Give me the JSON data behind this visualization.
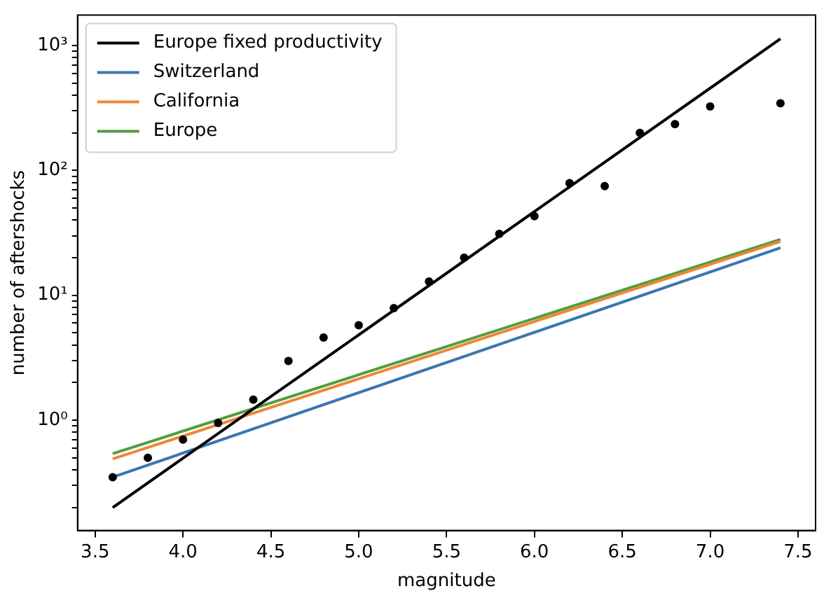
{
  "chart_data": {
    "type": "line",
    "xlabel": "magnitude",
    "ylabel": "number of aftershocks",
    "log": "y",
    "legend": "top left",
    "grid": false,
    "xlim": [
      3.4,
      7.6
    ],
    "ylim": [
      0.131,
      1750
    ],
    "xticks": [
      3.5,
      {
        "value": 4,
        "label": "4.0"
      },
      4.5,
      {
        "value": 5,
        "label": "5.0"
      },
      5.5,
      {
        "value": 6,
        "label": "6.0"
      },
      6.5,
      {
        "value": 7,
        "label": "7.0"
      },
      7.5
    ],
    "yticks": [
      {
        "value": 0.2,
        "label": null
      },
      {
        "value": 0.3,
        "label": null
      },
      {
        "value": 0.4,
        "label": null
      },
      {
        "value": 0.5,
        "label": null
      },
      {
        "value": 0.6,
        "label": null
      },
      {
        "value": 0.7,
        "label": null
      },
      {
        "value": 0.8,
        "label": null
      },
      {
        "value": 0.9,
        "label": null
      },
      {
        "value": 1,
        "label": "10⁰"
      },
      {
        "value": 2,
        "label": null
      },
      {
        "value": 3,
        "label": null
      },
      {
        "value": 4,
        "label": null
      },
      {
        "value": 5,
        "label": null
      },
      {
        "value": 6,
        "label": null
      },
      {
        "value": 7,
        "label": null
      },
      {
        "value": 8,
        "label": null
      },
      {
        "value": 9,
        "label": null
      },
      {
        "value": 10,
        "label": "10¹"
      },
      {
        "value": 20,
        "label": null
      },
      {
        "value": 30,
        "label": null
      },
      {
        "value": 40,
        "label": null
      },
      {
        "value": 50,
        "label": null
      },
      {
        "value": 60,
        "label": null
      },
      {
        "value": 70,
        "label": null
      },
      {
        "value": 80,
        "label": null
      },
      {
        "value": 90,
        "label": null
      },
      {
        "value": 100,
        "label": "10²"
      },
      {
        "value": 200,
        "label": null
      },
      {
        "value": 300,
        "label": null
      },
      {
        "value": 400,
        "label": null
      },
      {
        "value": 500,
        "label": null
      },
      {
        "value": 600,
        "label": null
      },
      {
        "value": 700,
        "label": null
      },
      {
        "value": 800,
        "label": null
      },
      {
        "value": 900,
        "label": null
      },
      {
        "value": 1000,
        "label": "10³"
      }
    ],
    "series": [
      {
        "name": "Europe fixed productivity",
        "color": "#000000",
        "marker": "none",
        "x": [
          3.6,
          7.4
        ],
        "values": [
          0.2,
          1130
        ]
      },
      {
        "name": "Switzerland",
        "color": "#3a76af",
        "marker": "none",
        "x": [
          3.6,
          7.4
        ],
        "values": [
          0.35,
          24
        ]
      },
      {
        "name": "California",
        "color": "#ef8636",
        "marker": "none",
        "x": [
          3.6,
          7.4
        ],
        "values": [
          0.49,
          27
        ]
      },
      {
        "name": "Europe",
        "color": "#519e3e",
        "marker": "none",
        "x": [
          3.6,
          7.4
        ],
        "values": [
          0.54,
          28
        ]
      },
      {
        "type": "scatter",
        "color": "#000000",
        "marker": "circle",
        "x": [
          3.6,
          3.8,
          4.0,
          4.2,
          4.4,
          4.6,
          4.8,
          5.0,
          5.2,
          5.4,
          5.6,
          5.8,
          6.0,
          6.2,
          6.4,
          6.6,
          6.8,
          7.0,
          7.4
        ],
        "values": [
          0.35,
          0.5,
          0.7,
          0.95,
          1.46,
          2.98,
          4.6,
          5.75,
          7.9,
          12.9,
          20,
          31,
          43,
          79,
          75,
          200,
          235,
          325,
          345
        ]
      }
    ]
  }
}
